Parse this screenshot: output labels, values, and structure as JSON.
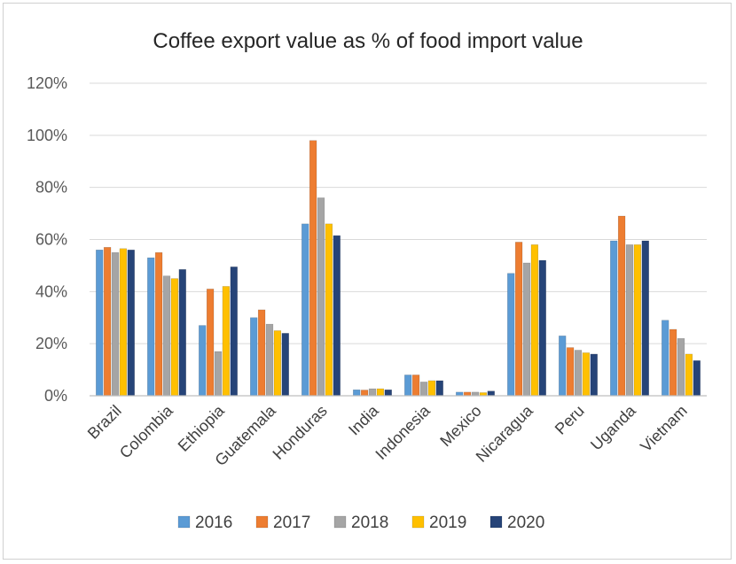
{
  "chart_data": {
    "type": "bar",
    "title": "Coffee export value as % of food import value",
    "xlabel": "",
    "ylabel": "",
    "ylim": [
      0,
      120
    ],
    "yticks": [
      0,
      20,
      40,
      60,
      80,
      100,
      120
    ],
    "ytick_labels": [
      "0%",
      "20%",
      "40%",
      "60%",
      "80%",
      "100%",
      "120%"
    ],
    "grid": true,
    "legend_position": "bottom",
    "categories": [
      "Brazil",
      "Colombia",
      "Ethiopia",
      "Guatemala",
      "Honduras",
      "India",
      "Indonesia",
      "Mexico",
      "Nicaragua",
      "Peru",
      "Uganda",
      "Vietnam"
    ],
    "series": [
      {
        "name": "2016",
        "color": "#5B9BD5",
        "values": [
          56,
          53,
          27,
          30,
          66,
          2.3,
          8,
          1.4,
          47,
          23,
          59.5,
          29
        ]
      },
      {
        "name": "2017",
        "color": "#ED7D31",
        "values": [
          57,
          55,
          41,
          33,
          98,
          2.2,
          8,
          1.4,
          59,
          18.5,
          69,
          25.5
        ]
      },
      {
        "name": "2018",
        "color": "#A5A5A5",
        "values": [
          55,
          46,
          17,
          27.5,
          76,
          2.7,
          5.3,
          1.4,
          51,
          17.5,
          58,
          22
        ]
      },
      {
        "name": "2019",
        "color": "#FFC000",
        "values": [
          56.5,
          45,
          42,
          25,
          66,
          2.7,
          5.8,
          1.2,
          58,
          16.5,
          58,
          16
        ]
      },
      {
        "name": "2020",
        "color": "#264478",
        "values": [
          56,
          48.5,
          49.5,
          24,
          61.5,
          2.3,
          5.8,
          1.8,
          52,
          16,
          59.5,
          13.5
        ]
      }
    ]
  }
}
